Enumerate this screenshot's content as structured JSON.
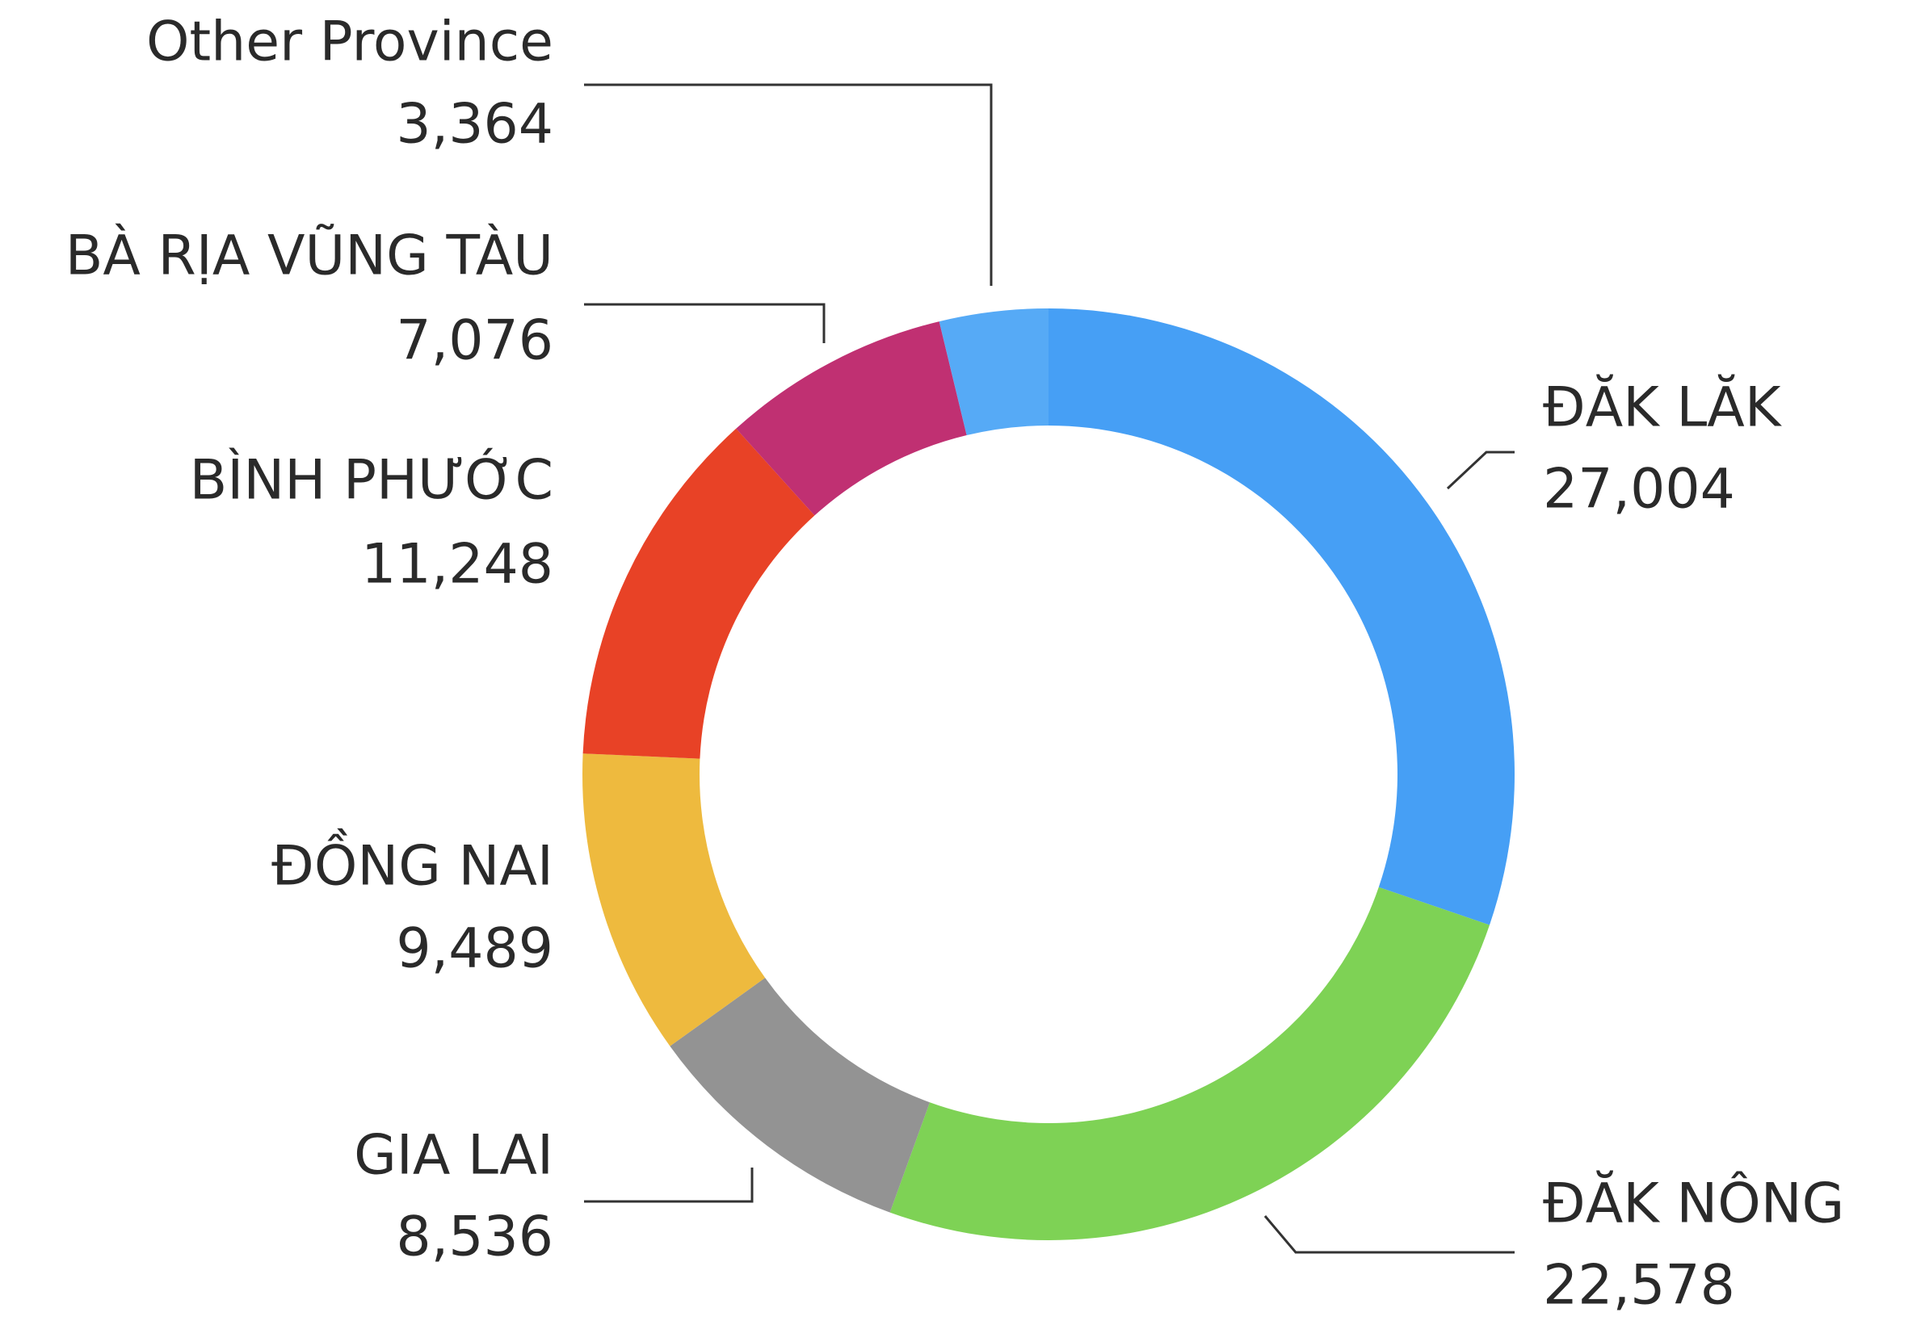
{
  "chart_data": {
    "type": "pie",
    "categories": [
      "ĐĂK LĂK",
      "ĐĂK NÔNG",
      "GIA LAI",
      "ĐỒNG NAI",
      "BÌNH PHƯỚC",
      "BÀ RỊA VŨNG TÀU",
      "Other Province"
    ],
    "values": [
      27004,
      22578,
      8536,
      9489,
      11248,
      7076,
      3364
    ],
    "value_labels": [
      "27,004",
      "22,578",
      "8,536",
      "9,489",
      "11,248",
      "7,076",
      "3,364"
    ],
    "colors": [
      "#469ff5",
      "#7ed255",
      "#939393",
      "#eeba3e",
      "#e84226",
      "#c03072",
      "#56aaf6"
    ]
  }
}
